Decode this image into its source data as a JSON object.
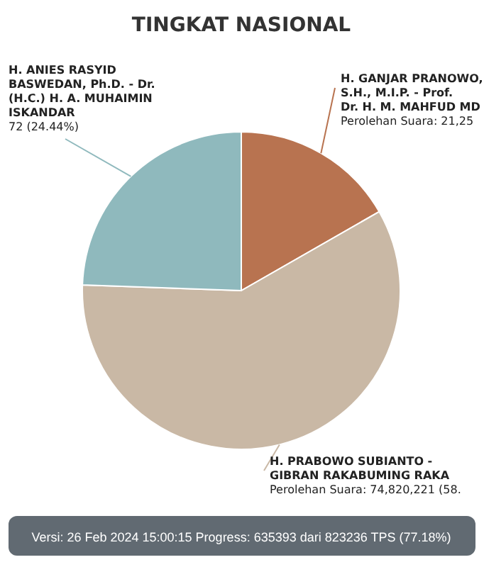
{
  "chart_data": {
    "type": "pie",
    "title": "TINGKAT NASIONAL",
    "categories": [
      "H. GANJAR PRANOWO, S.H., M.I.P. - Prof. Dr. H. M. MAHFUD MD",
      "H. PRABOWO SUBIANTO - GIBRAN RAKABUMING RAKA",
      "H. ANIES RASYID BASWEDAN, Ph.D. - Dr. (H.C.) H. A. MUHAIMIN ISKANDAR"
    ],
    "values": [
      16.72,
      58.84,
      24.44
    ],
    "colors": [
      "#b87350",
      "#c9b8a5",
      "#8fb9bd"
    ],
    "annotations": [
      "Versi: 26 Feb 2024 15:00:15 Progress: 635393 dari 823236 TPS (77.18%)",
      "Perolehan Suara: 21,25",
      "Perolehan Suara: 74,820,221 (58.",
      "72 (24.44%)"
    ]
  }
}
